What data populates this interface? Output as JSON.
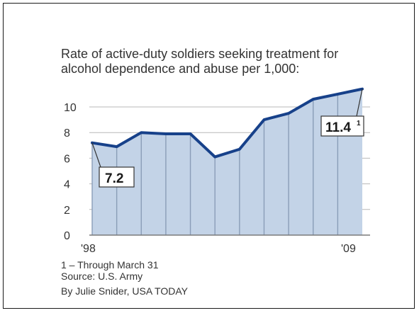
{
  "chart_data": {
    "type": "area",
    "title": "Rate of active-duty soldiers seeking treatment for alcohol dependence and abuse per 1,000:",
    "x": [
      1998,
      1999,
      2000,
      2001,
      2002,
      2003,
      2004,
      2005,
      2006,
      2007,
      2008,
      2009
    ],
    "x_tick_labels": [
      "'98",
      "'09"
    ],
    "values": [
      7.2,
      6.9,
      8.0,
      7.9,
      7.9,
      6.1,
      6.7,
      9.0,
      9.5,
      10.6,
      11.0,
      11.4
    ],
    "yticks": [
      0,
      2,
      4,
      6,
      8,
      10
    ],
    "ylim": [
      0,
      11.4
    ],
    "annotations": [
      {
        "index": 0,
        "label": "7.2"
      },
      {
        "index": 11,
        "label": "11.4",
        "footnote_mark": "1"
      }
    ],
    "grid": true
  },
  "footnote": "1 – Through March 31",
  "source": "Source: U.S. Army",
  "credit": "By Julie Snider, USA TODAY",
  "colors": {
    "fill": "#c3d3e7",
    "line": "#17418a",
    "grid": "#b8b8b8",
    "text": "#333333"
  }
}
